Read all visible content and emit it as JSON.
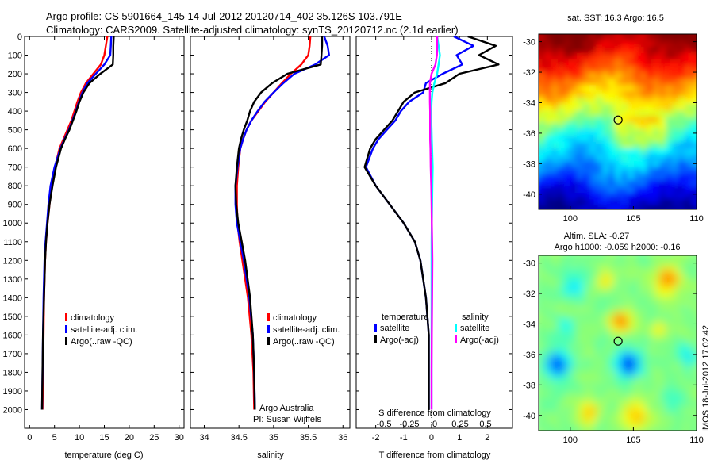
{
  "header": {
    "title_line1": "Argo profile: CS 5901664_145 14-Jul-2012 20120714_402 35.126S 103.791E",
    "title_line2": "Climatology: CARS2009. Satellite-adjusted climatology: synTS_20120712.nc (2.1d earlier)"
  },
  "colors": {
    "climatology": "#ff0000",
    "satellite_adj": "#0000ff",
    "argo": "#000000",
    "satellite_salinity": "#00ffff",
    "argo_salinity_adj": "#ff00ff"
  },
  "chart_data": [
    {
      "id": "temperature",
      "type": "line",
      "xlabel": "temperature (deg C)",
      "ylabel": "",
      "xlim": [
        -1,
        31
      ],
      "ylim": [
        2100,
        0
      ],
      "xticks": [
        0,
        5,
        10,
        15,
        20,
        25,
        30
      ],
      "yticks": [
        0,
        100,
        200,
        300,
        400,
        500,
        600,
        700,
        800,
        900,
        1000,
        1100,
        1200,
        1300,
        1400,
        1500,
        1600,
        1700,
        1800,
        1900,
        2000
      ],
      "legend": [
        "climatology",
        "satellite-adj. clim.",
        "Argo(..raw -QC)"
      ],
      "legend_position": "lower-right",
      "series": [
        {
          "name": "climatology",
          "color": "#ff0000",
          "x": [
            15.6,
            15.3,
            15.0,
            14.3,
            12.8,
            11.3,
            10.3,
            9.6,
            9.0,
            8.4,
            7.6,
            6.8,
            6.0,
            5.1,
            4.5,
            4.0,
            3.6,
            3.3,
            3.1,
            2.9,
            2.8,
            2.7,
            2.6
          ],
          "y": [
            0,
            50,
            100,
            150,
            200,
            250,
            300,
            350,
            400,
            450,
            500,
            550,
            600,
            700,
            800,
            900,
            1000,
            1100,
            1200,
            1400,
            1600,
            1800,
            2000
          ]
        },
        {
          "name": "satellite-adj. clim.",
          "color": "#0000ff",
          "x": [
            16.4,
            16.3,
            16.2,
            15.0,
            13.3,
            11.6,
            10.6,
            9.9,
            9.3,
            8.6,
            7.9,
            7.0,
            6.2,
            5.0,
            4.2,
            3.8,
            3.5,
            3.2,
            3.0,
            2.8,
            2.7,
            2.6,
            2.5
          ],
          "y": [
            0,
            50,
            100,
            150,
            200,
            250,
            300,
            350,
            400,
            450,
            500,
            550,
            600,
            700,
            800,
            900,
            1000,
            1100,
            1200,
            1400,
            1600,
            1800,
            2000
          ]
        },
        {
          "name": "Argo(..raw -QC)",
          "color": "#000000",
          "x": [
            16.9,
            16.8,
            16.8,
            16.7,
            14.2,
            12.0,
            10.8,
            10.0,
            9.4,
            8.7,
            8.0,
            7.1,
            6.3,
            5.3,
            4.6,
            4.0,
            3.6,
            3.3,
            3.1,
            2.9,
            2.7,
            2.6,
            2.5
          ],
          "y": [
            0,
            50,
            100,
            150,
            200,
            250,
            300,
            350,
            400,
            450,
            500,
            550,
            600,
            700,
            800,
            900,
            1000,
            1100,
            1200,
            1400,
            1600,
            1800,
            2000
          ]
        }
      ]
    },
    {
      "id": "salinity",
      "type": "line",
      "xlabel": "salinity",
      "ylabel": "",
      "xlim": [
        33.8,
        36.1
      ],
      "ylim": [
        2100,
        0
      ],
      "xticks": [
        34,
        34.5,
        35,
        35.5,
        36
      ],
      "legend": [
        "climatology",
        "satellite-adj. clim.",
        "Argo(..raw -QC)"
      ],
      "legend_position": "lower-right",
      "annotation": [
        "Argo Australia",
        "PI: Susan Wijffels"
      ],
      "series": [
        {
          "name": "climatology",
          "color": "#ff0000",
          "x": [
            35.53,
            35.52,
            35.5,
            35.4,
            35.25,
            35.12,
            35.0,
            34.88,
            34.78,
            34.68,
            34.61,
            34.56,
            34.52,
            34.49,
            34.47,
            34.47,
            34.48,
            34.51,
            34.55,
            34.63,
            34.68,
            34.71,
            34.72
          ],
          "y": [
            0,
            50,
            100,
            150,
            200,
            250,
            300,
            350,
            400,
            450,
            500,
            550,
            600,
            700,
            800,
            900,
            1000,
            1100,
            1200,
            1400,
            1600,
            1800,
            2000
          ]
        },
        {
          "name": "satellite-adj. clim.",
          "color": "#0000ff",
          "x": [
            35.73,
            35.78,
            35.8,
            35.6,
            35.3,
            35.14,
            35.0,
            34.87,
            34.77,
            34.68,
            34.61,
            34.56,
            34.52,
            34.48,
            34.45,
            34.45,
            34.47,
            34.52,
            34.57,
            34.65,
            34.7,
            34.72,
            34.73
          ],
          "y": [
            0,
            50,
            100,
            150,
            200,
            250,
            300,
            350,
            400,
            450,
            500,
            550,
            600,
            700,
            800,
            900,
            1000,
            1100,
            1200,
            1400,
            1600,
            1800,
            2000
          ]
        },
        {
          "name": "Argo(..raw -QC)",
          "color": "#000000",
          "x": [
            35.7,
            35.7,
            35.69,
            35.68,
            35.2,
            34.98,
            34.82,
            34.72,
            34.66,
            34.62,
            34.57,
            34.53,
            34.5,
            34.47,
            34.45,
            34.46,
            34.49,
            34.54,
            34.59,
            34.66,
            34.7,
            34.72,
            34.73
          ],
          "y": [
            0,
            50,
            100,
            150,
            200,
            250,
            300,
            350,
            400,
            450,
            500,
            550,
            600,
            700,
            800,
            900,
            1000,
            1100,
            1200,
            1400,
            1600,
            1800,
            2000
          ]
        }
      ]
    },
    {
      "id": "difference",
      "type": "line",
      "xlabel": "T difference from climatology",
      "secondary_xlabel": "S difference from climatology",
      "xlim": [
        -2.7,
        2.9
      ],
      "ylim": [
        2100,
        0
      ],
      "xticks": [
        -2,
        -1,
        0,
        1,
        2
      ],
      "secondary_xticks": [
        -0.5,
        -0.25,
        0,
        0.25,
        0.5
      ],
      "legend_headings": [
        "temperature",
        "salinity"
      ],
      "legend": [
        "satellite",
        "Argo(-adj)",
        "satellite",
        "Argo(-adj)"
      ],
      "legend_position": "lower-center",
      "series": [
        {
          "name": "satellite",
          "group": "temperature",
          "color": "#0000ff",
          "x": [
            0.8,
            1.5,
            0.9,
            1.1,
            0.4,
            -0.2,
            -0.3,
            -0.8,
            -1.1,
            -1.3,
            -1.6,
            -1.9,
            -2.1,
            -2.35,
            -2.0,
            -1.5,
            -1.0,
            -0.6,
            -0.4,
            -0.2,
            -0.1,
            -0.1,
            -0.1
          ],
          "y": [
            0,
            50,
            100,
            150,
            200,
            250,
            300,
            350,
            400,
            450,
            500,
            550,
            600,
            700,
            800,
            900,
            1000,
            1100,
            1200,
            1400,
            1600,
            1800,
            2000
          ]
        },
        {
          "name": "Argo(-adj)",
          "group": "temperature",
          "color": "#000000",
          "x": [
            1.3,
            2.3,
            1.7,
            2.4,
            1.0,
            0.5,
            -0.6,
            -1.0,
            -1.2,
            -1.4,
            -1.7,
            -2.0,
            -2.2,
            -2.4,
            -2.0,
            -1.5,
            -1.0,
            -0.6,
            -0.4,
            -0.2,
            -0.1,
            -0.1,
            -0.1
          ],
          "y": [
            0,
            50,
            100,
            150,
            200,
            250,
            300,
            350,
            400,
            450,
            500,
            550,
            600,
            700,
            800,
            900,
            1000,
            1100,
            1200,
            1400,
            1600,
            1800,
            2000
          ]
        },
        {
          "name": "satellite",
          "group": "salinity",
          "color": "#00ffff",
          "x": [
            0.2,
            0.25,
            0.3,
            0.25,
            0.2,
            0.1,
            0.03,
            0.0,
            -0.01,
            -0.01,
            0.0,
            0.01,
            0.02,
            0.04,
            0.03,
            0.02,
            0.01,
            0.0,
            0.0,
            0.0,
            0.0,
            0.0,
            0.0
          ],
          "y": [
            0,
            50,
            100,
            150,
            200,
            250,
            300,
            350,
            400,
            450,
            500,
            550,
            600,
            700,
            800,
            900,
            1000,
            1100,
            1200,
            1400,
            1600,
            1800,
            2000
          ]
        },
        {
          "name": "Argo(-adj)",
          "group": "salinity",
          "color": "#ff00ff",
          "x": [
            0.2,
            0.2,
            0.19,
            0.14,
            0.0,
            -0.06,
            -0.06,
            -0.06,
            -0.05,
            -0.05,
            -0.05,
            -0.05,
            -0.04,
            -0.03,
            -0.01,
            0.0,
            0.01,
            0.02,
            0.03,
            0.02,
            0.01,
            0.0,
            0.0
          ],
          "y": [
            0,
            50,
            100,
            150,
            200,
            250,
            300,
            350,
            400,
            450,
            500,
            550,
            600,
            700,
            800,
            900,
            1000,
            1100,
            1200,
            1400,
            1600,
            1800,
            2000
          ]
        }
      ]
    },
    {
      "id": "sst_map",
      "type": "heatmap",
      "title": "sat. SST: 16.3 Argo: 16.5",
      "xlim": [
        97.5,
        110
      ],
      "ylim": [
        -41,
        -29.5
      ],
      "xticks": [
        100,
        105,
        110
      ],
      "yticks": [
        -30,
        -32,
        -34,
        -36,
        -38,
        -40
      ],
      "marker": {
        "lon": 103.79,
        "lat": -35.13
      },
      "colormap": "jet",
      "field_description_colors": [
        "#b30000",
        "#e64500",
        "#ff9900",
        "#ffdd00",
        "#cfff30",
        "#66ff66",
        "#00ccaa",
        "#2f8fff",
        "#0050e0"
      ]
    },
    {
      "id": "sla_map",
      "type": "heatmap",
      "title_line1": "Altim. SLA: -0.27",
      "title_line2": "Argo h1000: -0.059 h2000: -0.16",
      "xlim": [
        97.5,
        110
      ],
      "ylim": [
        -41,
        -29.5
      ],
      "xticks": [
        100,
        105,
        110
      ],
      "yticks": [
        -30,
        -32,
        -34,
        -36,
        -38,
        -40
      ],
      "marker": {
        "lon": 103.79,
        "lat": -35.13
      },
      "colormap": "jet"
    }
  ],
  "side_stamp": "IMOS 18-Jul-2012 17:02:42"
}
